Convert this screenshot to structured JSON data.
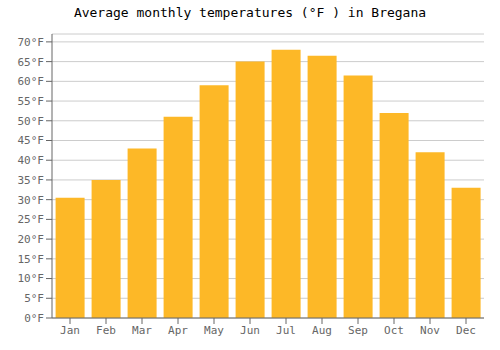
{
  "chart_data": {
    "type": "bar",
    "title": "Average monthly temperatures (°F ) in Bregana",
    "categories": [
      "Jan",
      "Feb",
      "Mar",
      "Apr",
      "May",
      "Jun",
      "Jul",
      "Aug",
      "Sep",
      "Oct",
      "Nov",
      "Dec"
    ],
    "values": [
      30.5,
      35,
      43,
      51,
      59,
      65,
      68,
      66.5,
      61.5,
      52,
      42,
      33
    ],
    "color": "#FDB827",
    "ylim": [
      0,
      72
    ],
    "yticks": [
      {
        "value": 0,
        "label": "0°F"
      },
      {
        "value": 5,
        "label": "5°F"
      },
      {
        "value": 10,
        "label": "10°F"
      },
      {
        "value": 15,
        "label": "15°F"
      },
      {
        "value": 20,
        "label": "20°F"
      },
      {
        "value": 25,
        "label": "25°F"
      },
      {
        "value": 30,
        "label": "30°F"
      },
      {
        "value": 35,
        "label": "35°F"
      },
      {
        "value": 40,
        "label": "40°F"
      },
      {
        "value": 45,
        "label": "45°F"
      },
      {
        "value": 50,
        "label": "50°F"
      },
      {
        "value": 55,
        "label": "55°F"
      },
      {
        "value": 60,
        "label": "60°F"
      },
      {
        "value": 65,
        "label": "65°F"
      },
      {
        "value": 70,
        "label": "70°F"
      }
    ],
    "grid": true
  }
}
